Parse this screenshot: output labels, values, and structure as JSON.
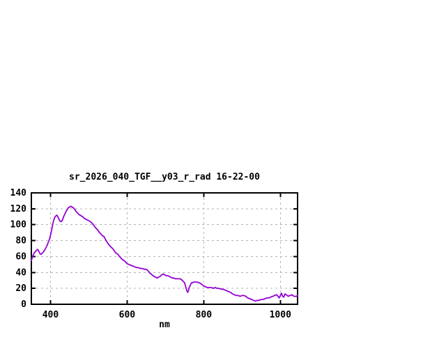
{
  "figure": {
    "background_color": "#ffffff",
    "axis_color": "#000000",
    "grid_color": "#b3b3b3",
    "text_color": "#000000"
  },
  "chart_data": {
    "type": "line",
    "title": "sr_2026_040_TGF__y03_r_rad 16-22-00",
    "xlabel": "nm",
    "ylabel": "",
    "xlim": [
      350,
      1045
    ],
    "ylim": [
      0,
      140
    ],
    "x_ticks": [
      400,
      600,
      800,
      1000
    ],
    "y_ticks": [
      0,
      20,
      40,
      60,
      80,
      100,
      120,
      140
    ],
    "grid": true,
    "grid_style": "dashed",
    "legend": false,
    "series": [
      {
        "name": "sr_2026_040_TGF__y03_r_rad",
        "color": "#9400d3",
        "points": [
          [
            350,
            55
          ],
          [
            352,
            58
          ],
          [
            354,
            61
          ],
          [
            356,
            63
          ],
          [
            358,
            65
          ],
          [
            360,
            66
          ],
          [
            362,
            67
          ],
          [
            364,
            68
          ],
          [
            366,
            69
          ],
          [
            368,
            68
          ],
          [
            370,
            66
          ],
          [
            372,
            64
          ],
          [
            374,
            63
          ],
          [
            376,
            63
          ],
          [
            378,
            64
          ],
          [
            380,
            65
          ],
          [
            382,
            66
          ],
          [
            384,
            68
          ],
          [
            386,
            69
          ],
          [
            388,
            71
          ],
          [
            390,
            73
          ],
          [
            392,
            75
          ],
          [
            394,
            78
          ],
          [
            396,
            80
          ],
          [
            398,
            83
          ],
          [
            400,
            87
          ],
          [
            402,
            91
          ],
          [
            404,
            96
          ],
          [
            406,
            101
          ],
          [
            408,
            105
          ],
          [
            410,
            108
          ],
          [
            412,
            110
          ],
          [
            414,
            111
          ],
          [
            416,
            112
          ],
          [
            418,
            111
          ],
          [
            420,
            109
          ],
          [
            422,
            107
          ],
          [
            424,
            105
          ],
          [
            426,
            104
          ],
          [
            428,
            104
          ],
          [
            430,
            105
          ],
          [
            432,
            107
          ],
          [
            434,
            110
          ],
          [
            436,
            112
          ],
          [
            438,
            114
          ],
          [
            440,
            116
          ],
          [
            442,
            118
          ],
          [
            444,
            119
          ],
          [
            446,
            121
          ],
          [
            448,
            122
          ],
          [
            450,
            122
          ],
          [
            452,
            123
          ],
          [
            454,
            123
          ],
          [
            456,
            122
          ],
          [
            458,
            122
          ],
          [
            460,
            121
          ],
          [
            462,
            120
          ],
          [
            464,
            119
          ],
          [
            466,
            117
          ],
          [
            468,
            116
          ],
          [
            470,
            115
          ],
          [
            472,
            114
          ],
          [
            474,
            113
          ],
          [
            476,
            112
          ],
          [
            478,
            112
          ],
          [
            480,
            111
          ],
          [
            484,
            110
          ],
          [
            488,
            108
          ],
          [
            492,
            107
          ],
          [
            496,
            106
          ],
          [
            500,
            105
          ],
          [
            504,
            104
          ],
          [
            508,
            102
          ],
          [
            512,
            100
          ],
          [
            516,
            97
          ],
          [
            520,
            95
          ],
          [
            524,
            93
          ],
          [
            528,
            90
          ],
          [
            532,
            88
          ],
          [
            536,
            86
          ],
          [
            540,
            85
          ],
          [
            544,
            81
          ],
          [
            548,
            78
          ],
          [
            552,
            75
          ],
          [
            556,
            73
          ],
          [
            560,
            71
          ],
          [
            564,
            69
          ],
          [
            568,
            66
          ],
          [
            572,
            64
          ],
          [
            576,
            63
          ],
          [
            580,
            60
          ],
          [
            584,
            58
          ],
          [
            588,
            56
          ],
          [
            592,
            55
          ],
          [
            596,
            53
          ],
          [
            600,
            51
          ],
          [
            605,
            50
          ],
          [
            610,
            49
          ],
          [
            615,
            48
          ],
          [
            620,
            47
          ],
          [
            625,
            46
          ],
          [
            630,
            46
          ],
          [
            635,
            45
          ],
          [
            640,
            45
          ],
          [
            645,
            44
          ],
          [
            650,
            44
          ],
          [
            655,
            42
          ],
          [
            660,
            39
          ],
          [
            665,
            37
          ],
          [
            670,
            35
          ],
          [
            675,
            34
          ],
          [
            678,
            33
          ],
          [
            682,
            34
          ],
          [
            686,
            35
          ],
          [
            690,
            37
          ],
          [
            694,
            38
          ],
          [
            698,
            37
          ],
          [
            702,
            36
          ],
          [
            706,
            36
          ],
          [
            710,
            35
          ],
          [
            714,
            34
          ],
          [
            718,
            33
          ],
          [
            722,
            33
          ],
          [
            726,
            32
          ],
          [
            730,
            32
          ],
          [
            734,
            32
          ],
          [
            738,
            32
          ],
          [
            742,
            31
          ],
          [
            746,
            29
          ],
          [
            750,
            27
          ],
          [
            753,
            22
          ],
          [
            756,
            17
          ],
          [
            758,
            15
          ],
          [
            760,
            17
          ],
          [
            762,
            21
          ],
          [
            765,
            24
          ],
          [
            768,
            27
          ],
          [
            771,
            27
          ],
          [
            774,
            28
          ],
          [
            777,
            28
          ],
          [
            780,
            28
          ],
          [
            783,
            28
          ],
          [
            786,
            27
          ],
          [
            789,
            27
          ],
          [
            792,
            26
          ],
          [
            795,
            25
          ],
          [
            800,
            23
          ],
          [
            805,
            22
          ],
          [
            810,
            21
          ],
          [
            815,
            21
          ],
          [
            820,
            21
          ],
          [
            825,
            20
          ],
          [
            830,
            21
          ],
          [
            835,
            20
          ],
          [
            840,
            20
          ],
          [
            845,
            19
          ],
          [
            850,
            19
          ],
          [
            855,
            18
          ],
          [
            860,
            17
          ],
          [
            865,
            16
          ],
          [
            870,
            15
          ],
          [
            875,
            13
          ],
          [
            880,
            12
          ],
          [
            885,
            11
          ],
          [
            890,
            11
          ],
          [
            895,
            10
          ],
          [
            900,
            11
          ],
          [
            905,
            11
          ],
          [
            910,
            10
          ],
          [
            915,
            8
          ],
          [
            920,
            7
          ],
          [
            925,
            6
          ],
          [
            930,
            5
          ],
          [
            935,
            4
          ],
          [
            940,
            5
          ],
          [
            945,
            5
          ],
          [
            950,
            6
          ],
          [
            955,
            6
          ],
          [
            960,
            7
          ],
          [
            965,
            8
          ],
          [
            970,
            8
          ],
          [
            975,
            9
          ],
          [
            980,
            10
          ],
          [
            985,
            11
          ],
          [
            990,
            12
          ],
          [
            994,
            10
          ],
          [
            997,
            8
          ],
          [
            1000,
            11
          ],
          [
            1003,
            14
          ],
          [
            1006,
            10
          ],
          [
            1009,
            9
          ],
          [
            1012,
            13
          ],
          [
            1015,
            12
          ],
          [
            1018,
            11
          ],
          [
            1021,
            10
          ],
          [
            1024,
            11
          ],
          [
            1027,
            11
          ],
          [
            1030,
            12
          ],
          [
            1033,
            11
          ],
          [
            1036,
            10
          ],
          [
            1039,
            10
          ],
          [
            1042,
            10
          ],
          [
            1045,
            11
          ]
        ]
      }
    ]
  }
}
